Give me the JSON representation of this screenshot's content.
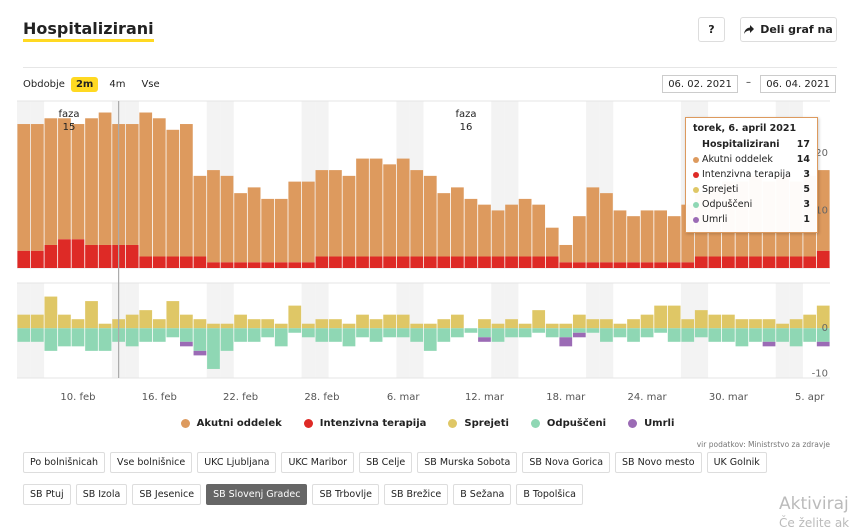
{
  "header": {
    "title": "Hospitalizirani",
    "help": "?",
    "share": "Deli graf na"
  },
  "period": {
    "label": "Obdobje",
    "options": [
      "2m",
      "4m",
      "Vse"
    ],
    "selected": 0
  },
  "dates": {
    "from": "06. 02. 2021",
    "separator": "–",
    "to": "06. 04. 2021"
  },
  "chart_data": [
    {
      "type": "bar",
      "stacked": true,
      "ylim": [
        0,
        29
      ],
      "yticks": [
        10,
        20
      ],
      "grid": false,
      "annotations": [
        [
          "faza",
          "15"
        ],
        [
          "faza",
          "16"
        ]
      ],
      "series": [
        {
          "name": "Akutni oddelek",
          "color": "#dd9a5e",
          "values": [
            22,
            22,
            22,
            21,
            20,
            22,
            23,
            21,
            21,
            25,
            24,
            22,
            23,
            14,
            16,
            15,
            12,
            13,
            11,
            11,
            14,
            14,
            15,
            15,
            14,
            17,
            17,
            16,
            17,
            15,
            14,
            11,
            12,
            10,
            9,
            8,
            9,
            10,
            9,
            5,
            3,
            8,
            13,
            12,
            9,
            8,
            9,
            9,
            8,
            10,
            11,
            12,
            13,
            13,
            14,
            13,
            14,
            13,
            14,
            14
          ]
        },
        {
          "name": "Intenzivna terapija",
          "color": "#de2a26",
          "values": [
            3,
            3,
            4,
            5,
            5,
            4,
            4,
            4,
            4,
            2,
            2,
            2,
            2,
            2,
            1,
            1,
            1,
            1,
            1,
            1,
            1,
            1,
            2,
            2,
            2,
            2,
            2,
            2,
            2,
            2,
            2,
            2,
            2,
            2,
            2,
            2,
            2,
            2,
            2,
            2,
            1,
            1,
            1,
            1,
            1,
            1,
            1,
            1,
            1,
            1,
            2,
            2,
            2,
            2,
            2,
            2,
            2,
            2,
            2,
            3
          ]
        }
      ]
    },
    {
      "type": "bar",
      "stacked": true,
      "ylim": [
        -11,
        10
      ],
      "yticks": [
        -10,
        0
      ],
      "grid": false,
      "categories": [
        null,
        null,
        null,
        null,
        "10. feb",
        null,
        null,
        null,
        null,
        null,
        "16. feb",
        null,
        null,
        null,
        null,
        null,
        "22. feb",
        null,
        null,
        null,
        null,
        null,
        "28. feb",
        null,
        null,
        null,
        null,
        null,
        "6. mar",
        null,
        null,
        null,
        null,
        null,
        "12. mar",
        null,
        null,
        null,
        null,
        null,
        "18. mar",
        null,
        null,
        null,
        null,
        null,
        "24. mar",
        null,
        null,
        null,
        null,
        null,
        "30. mar",
        null,
        null,
        null,
        null,
        null,
        "5. apr",
        null
      ],
      "series": [
        {
          "name": "Sprejeti",
          "color": "#dfc766",
          "values": [
            3,
            3,
            7,
            3,
            2,
            6,
            1,
            2,
            3,
            4,
            2,
            6,
            3,
            2,
            1,
            1,
            3,
            2,
            2,
            1,
            5,
            1,
            2,
            2,
            1,
            3,
            2,
            3,
            3,
            1,
            1,
            2,
            3,
            0,
            2,
            1,
            2,
            1,
            4,
            1,
            1,
            3,
            2,
            2,
            1,
            2,
            3,
            5,
            5,
            2,
            4,
            3,
            3,
            2,
            2,
            2,
            1,
            2,
            3,
            5
          ]
        },
        {
          "name": "Odpuščeni",
          "color": "#8fd7b4",
          "values": [
            -3,
            -3,
            -5,
            -4,
            -4,
            -5,
            -5,
            -3,
            -4,
            -3,
            -3,
            -2,
            -3,
            -5,
            -9,
            -5,
            -3,
            -3,
            -2,
            -4,
            -1,
            -2,
            -3,
            -3,
            -4,
            -2,
            -3,
            -2,
            -2,
            -3,
            -5,
            -3,
            -2,
            -1,
            -2,
            -3,
            -2,
            -2,
            -1,
            -2,
            -2,
            -1,
            -1,
            -3,
            -2,
            -3,
            -2,
            -1,
            -3,
            -3,
            -2,
            -3,
            -3,
            -4,
            -3,
            -3,
            -3,
            -4,
            -3,
            -3
          ]
        },
        {
          "name": "Umrli",
          "color": "#9b6bb5",
          "values": [
            0,
            0,
            0,
            0,
            0,
            0,
            0,
            0,
            0,
            0,
            0,
            0,
            -1,
            -1,
            0,
            0,
            0,
            0,
            0,
            0,
            0,
            0,
            0,
            0,
            0,
            0,
            0,
            0,
            0,
            0,
            0,
            0,
            0,
            0,
            -1,
            0,
            0,
            0,
            0,
            0,
            -2,
            -1,
            0,
            0,
            0,
            0,
            0,
            0,
            0,
            0,
            0,
            0,
            0,
            0,
            0,
            -1,
            0,
            0,
            0,
            -1
          ]
        }
      ]
    }
  ],
  "tooltip": {
    "date": "torek, 6. april 2021",
    "values": [
      17,
      14,
      3,
      5,
      3,
      1
    ]
  },
  "source": "vir podatkov: Ministrstvo za zdravje",
  "hospitals": {
    "items": [
      "Po bolnišnicah",
      "Vse bolnišnice",
      "UKC Ljubljana",
      "UKC Maribor",
      "SB Celje",
      "SB Murska Sobota",
      "SB Nova Gorica",
      "SB Novo mesto",
      "UK Golnik",
      "SB Ptuj",
      "SB Izola",
      "SB Jesenice",
      "SB Slovenj Gradec",
      "SB Trbovlje",
      "SB Brežice",
      "B Sežana",
      "B Topolšica"
    ],
    "selected": 12
  },
  "watermark": [
    "Aktiviraj",
    "Če želite ak"
  ]
}
